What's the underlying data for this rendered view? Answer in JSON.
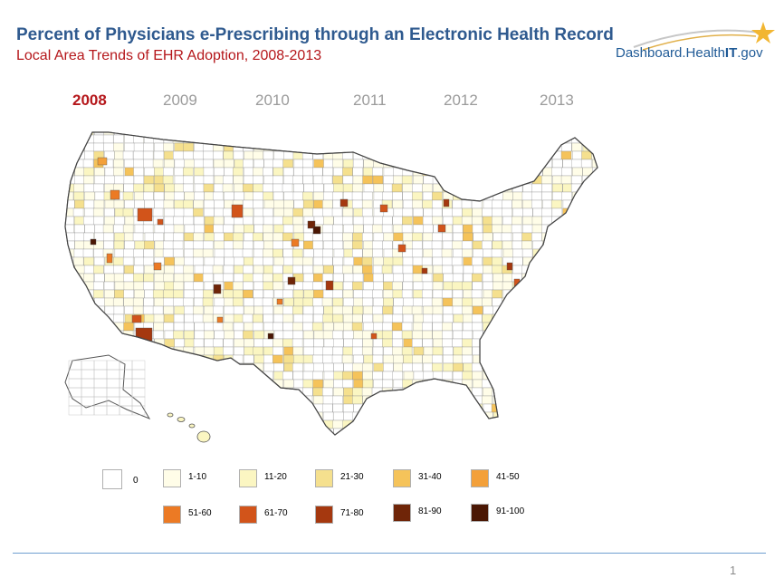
{
  "header": {
    "title": "Percent of Physicians e-Prescribing through an Electronic Health Record",
    "subtitle": "Local Area Trends of EHR Adoption, 2008-2013"
  },
  "logo": {
    "text_main": "Dashboard.Health",
    "text_it": "IT",
    "text_tail": ".gov",
    "star_color": "#f2b632"
  },
  "years": [
    {
      "label": "2008",
      "active": true
    },
    {
      "label": "2009",
      "active": false
    },
    {
      "label": "2010",
      "active": false
    },
    {
      "label": "2011",
      "active": false
    },
    {
      "label": "2012",
      "active": false
    },
    {
      "label": "2013",
      "active": false
    }
  ],
  "legend": [
    {
      "label": "0",
      "color": "#ffffff"
    },
    {
      "label": "1-10",
      "color": "#fffde8"
    },
    {
      "label": "11-20",
      "color": "#fbf6c2"
    },
    {
      "label": "21-30",
      "color": "#f5e08e"
    },
    {
      "label": "31-40",
      "color": "#f5c35a"
    },
    {
      "label": "41-50",
      "color": "#f3a03a"
    },
    {
      "label": "51-60",
      "color": "#ec7a24"
    },
    {
      "label": "61-70",
      "color": "#d2541a"
    },
    {
      "label": "71-80",
      "color": "#a5380f"
    },
    {
      "label": "81-90",
      "color": "#6f2508"
    },
    {
      "label": "91-100",
      "color": "#4a1704"
    }
  ],
  "page_number": "1"
}
